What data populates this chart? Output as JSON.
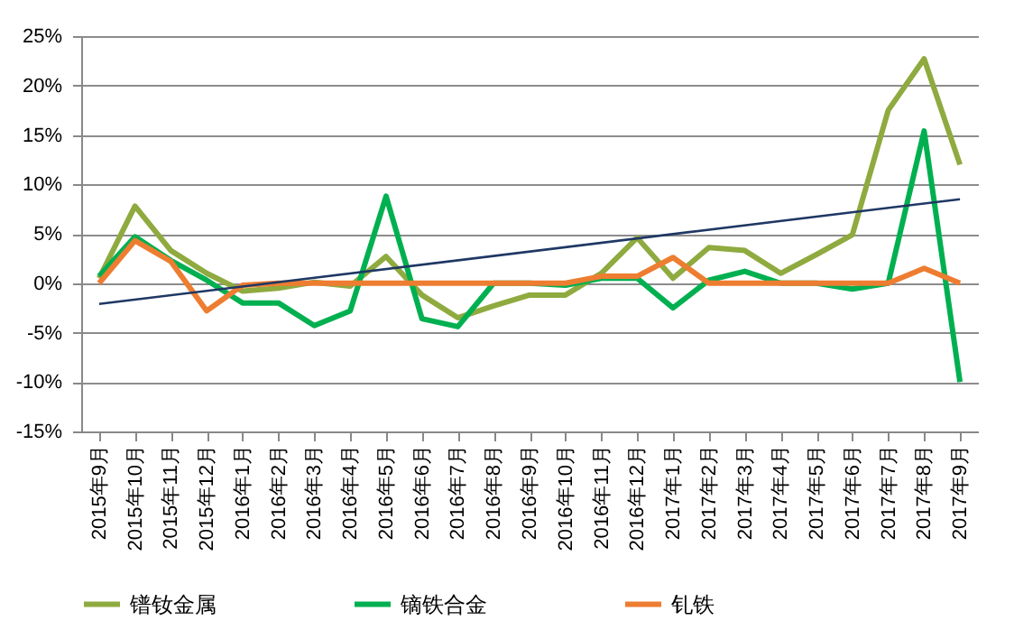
{
  "chart_data": {
    "type": "line",
    "categories": [
      "2015年9月",
      "2015年10月",
      "2015年11月",
      "2015年12月",
      "2016年1月",
      "2016年2月",
      "2016年3月",
      "2016年4月",
      "2016年5月",
      "2016年6月",
      "2016年7月",
      "2016年8月",
      "2016年9月",
      "2016年10月",
      "2016年11月",
      "2016年12月",
      "2017年1月",
      "2017年2月",
      "2017年3月",
      "2017年4月",
      "2017年5月",
      "2017年6月",
      "2017年7月",
      "2017年8月",
      "2017年9月"
    ],
    "series": [
      {
        "name": "镨钕金属",
        "color": "#8faa3f",
        "values": [
          0.5,
          7.8,
          3.3,
          1.0,
          -0.8,
          -0.5,
          0.1,
          -0.3,
          2.7,
          -1.2,
          -3.5,
          -2.3,
          -1.2,
          -1.2,
          1.0,
          4.6,
          0.5,
          3.6,
          3.3,
          1.0,
          2.9,
          4.9,
          17.5,
          22.7,
          12.0
        ]
      },
      {
        "name": "镝铁合金",
        "color": "#00b050",
        "values": [
          0.7,
          4.7,
          2.3,
          0.3,
          -2.0,
          -2.0,
          -4.3,
          -2.8,
          8.8,
          -3.6,
          -4.4,
          0,
          0,
          -0.2,
          0.5,
          0.5,
          -2.5,
          0.3,
          1.2,
          0,
          0,
          -0.6,
          0,
          15.4,
          -10.0
        ]
      },
      {
        "name": "钆铁",
        "color": "#ed7d31",
        "values": [
          0,
          4.3,
          2.2,
          -2.8,
          -0.2,
          0,
          0,
          0,
          0,
          0,
          0,
          0,
          0,
          0,
          0.7,
          0.7,
          2.6,
          0,
          0,
          0,
          0,
          0,
          0,
          1.5,
          0
        ]
      },
      {
        "type": "line",
        "color": "#1f3864",
        "x": [
          "2015年9月",
          "2017年9月"
        ],
        "values": [
          -2.1,
          8.5
        ]
      }
    ],
    "ylim": [
      -15,
      25
    ],
    "yticks": [
      {
        "value": -15,
        "label": "-15%"
      },
      {
        "value": -10,
        "label": "-10%"
      },
      {
        "value": -5,
        "label": "-5%"
      },
      {
        "value": 0,
        "label": "0%"
      },
      {
        "value": 5,
        "label": "5%"
      },
      {
        "value": 10,
        "label": "10%"
      },
      {
        "value": 15,
        "label": "15%"
      },
      {
        "value": 20,
        "label": "20%"
      },
      {
        "value": 25,
        "label": "25%"
      }
    ],
    "grid": "y",
    "legend": "bottom",
    "marker": "none",
    "line_style": "solid"
  }
}
